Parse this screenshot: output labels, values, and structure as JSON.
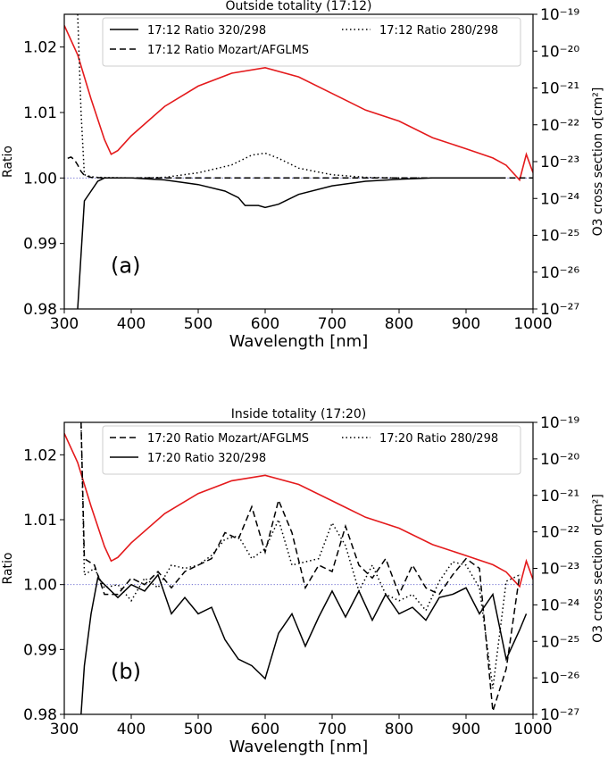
{
  "chart_data": [
    {
      "type": "line",
      "title": "Outside totality (17:12)",
      "xlabel": "Wavelength [nm]",
      "ylabel": "Ratio",
      "y2label": "O3 cross  section σ[cm²]",
      "panel_label": "(a)",
      "xlim": [
        300,
        1000
      ],
      "ylim": [
        0.98,
        1.025
      ],
      "y2_log_range": [
        -27,
        -19
      ],
      "x_ticks": [
        "300",
        "400",
        "500",
        "600",
        "700",
        "800",
        "900",
        "1000"
      ],
      "y_ticks": [
        "0.98",
        "0.99",
        "1.00",
        "1.01",
        "1.02"
      ],
      "y2_ticks": [
        "10⁻²⁷",
        "10⁻²⁶",
        "10⁻²⁵",
        "10⁻²⁴",
        "10⁻²³",
        "10⁻²²",
        "10⁻²¹",
        "10⁻²⁰",
        "10⁻¹⁹"
      ],
      "reference_line": 1.0,
      "legend": [
        "17:12 Ratio 320/298",
        "17:12 Ratio 280/298",
        "17:12 Ratio Mozart/AFGLMS"
      ],
      "series": [
        {
          "name": "17:12 Ratio 320/298",
          "style": "solid",
          "x": [
            320,
            330,
            340,
            350,
            360,
            380,
            400,
            450,
            500,
            540,
            560,
            570,
            590,
            600,
            620,
            650,
            700,
            750,
            800,
            850,
            900,
            950
          ],
          "y": [
            0.98,
            0.9965,
            0.998,
            0.9995,
            1.0,
            1.0,
            1.0,
            0.9997,
            0.999,
            0.998,
            0.997,
            0.9958,
            0.9958,
            0.9955,
            0.996,
            0.9975,
            0.9988,
            0.9995,
            0.9998,
            1.0,
            1.0,
            1.0
          ]
        },
        {
          "name": "17:12 Ratio 280/298",
          "style": "dotted",
          "x": [
            320,
            325,
            330,
            340,
            350,
            400,
            450,
            500,
            550,
            580,
            600,
            620,
            650,
            700,
            750,
            800,
            850,
            900
          ],
          "y": [
            1.025,
            1.01,
            1.0005,
            1.0002,
            1.0001,
            1.0,
            1.0001,
            1.0008,
            1.002,
            1.0035,
            1.0038,
            1.003,
            1.0015,
            1.0005,
            1.0001,
            1.0,
            1.0,
            1.0
          ]
        },
        {
          "name": "17:12 Ratio Mozart/AFGLMS",
          "style": "dashed",
          "x": [
            305,
            310,
            315,
            320,
            325,
            330,
            340,
            360,
            400,
            500,
            600,
            700,
            800,
            900,
            1000
          ],
          "y": [
            1.003,
            1.0032,
            1.0028,
            1.002,
            1.001,
            1.0004,
            1.0001,
            1.0,
            1.0,
            1.0,
            1.0,
            1.0,
            1.0,
            1.0,
            1.0
          ]
        }
      ],
      "cross_section": {
        "color": "#e41a1c",
        "x": [
          300,
          320,
          340,
          360,
          370,
          380,
          400,
          450,
          500,
          550,
          600,
          650,
          700,
          750,
          800,
          850,
          900,
          940,
          960,
          970,
          980,
          990,
          1000
        ],
        "log10_y": [
          -19.3,
          -20.1,
          -21.3,
          -22.4,
          -22.8,
          -22.7,
          -22.3,
          -21.5,
          -20.95,
          -20.6,
          -20.45,
          -20.7,
          -21.15,
          -21.6,
          -21.9,
          -22.35,
          -22.65,
          -22.9,
          -23.1,
          -23.3,
          -23.5,
          -22.8,
          -23.3
        ]
      }
    },
    {
      "type": "line",
      "title": "Inside totality (17:20)",
      "xlabel": "Wavelength [nm]",
      "ylabel": "Ratio",
      "y2label": "O3 cross  section σ[cm²]",
      "panel_label": "(b)",
      "xlim": [
        300,
        1000
      ],
      "ylim": [
        0.98,
        1.025
      ],
      "y2_log_range": [
        -27,
        -19
      ],
      "x_ticks": [
        "300",
        "400",
        "500",
        "600",
        "700",
        "800",
        "900",
        "1000"
      ],
      "y_ticks": [
        "0.98",
        "0.99",
        "1.00",
        "1.01",
        "1.02"
      ],
      "y2_ticks": [
        "10⁻²⁷",
        "10⁻²⁶",
        "10⁻²⁵",
        "10⁻²⁴",
        "10⁻²³",
        "10⁻²²",
        "10⁻²¹",
        "10⁻²⁰",
        "10⁻¹⁹"
      ],
      "reference_line": 1.0,
      "legend": [
        "17:20 Ratio Mozart/AFGLMS",
        "17:20 Ratio 280/298",
        "17:20 Ratio 320/298"
      ],
      "series": [
        {
          "name": "17:20 Ratio Mozart/AFGLMS",
          "style": "dashed",
          "x": [
            325,
            330,
            345,
            360,
            380,
            400,
            420,
            440,
            460,
            480,
            500,
            520,
            540,
            560,
            580,
            600,
            620,
            640,
            660,
            680,
            700,
            720,
            740,
            760,
            780,
            800,
            820,
            840,
            860,
            880,
            900,
            920,
            940,
            960,
            980
          ],
          "y": [
            1.025,
            1.004,
            1.003,
            0.9985,
            0.9985,
            1.001,
            1.0,
            1.002,
            0.9995,
            1.002,
            1.003,
            1.004,
            1.008,
            1.007,
            1.012,
            1.005,
            1.013,
            1.008,
            0.9995,
            1.003,
            1.002,
            1.009,
            1.003,
            1.001,
            1.004,
            0.9985,
            1.003,
            0.9995,
            0.9985,
            1.0015,
            1.004,
            1.0025,
            0.9805,
            0.987,
            1.0015
          ]
        },
        {
          "name": "17:20 Ratio 280/298",
          "style": "dotted",
          "x": [
            325,
            330,
            345,
            360,
            380,
            400,
            420,
            440,
            460,
            480,
            500,
            520,
            540,
            560,
            580,
            600,
            620,
            640,
            660,
            680,
            700,
            720,
            740,
            760,
            780,
            800,
            820,
            840,
            860,
            880,
            900,
            920,
            940,
            960,
            980
          ],
          "y": [
            1.025,
            1.0015,
            1.0025,
            0.9995,
            1.0,
            0.9975,
            1.001,
            0.9995,
            1.003,
            1.0025,
            1.003,
            1.0045,
            1.007,
            1.0075,
            1.004,
            1.0055,
            1.01,
            1.003,
            1.0035,
            1.004,
            1.0095,
            1.006,
            0.999,
            1.003,
            0.9985,
            0.9975,
            0.9985,
            0.996,
            1.0005,
            1.0035,
            1.003,
            0.9995,
            0.984,
            1.0005,
            1.0015
          ]
        },
        {
          "name": "17:20 Ratio 320/298",
          "style": "solid",
          "x": [
            325,
            330,
            340,
            350,
            360,
            380,
            400,
            420,
            440,
            460,
            480,
            500,
            520,
            540,
            560,
            580,
            600,
            620,
            640,
            660,
            680,
            700,
            720,
            740,
            760,
            780,
            800,
            820,
            840,
            860,
            880,
            900,
            920,
            940,
            960,
            980,
            990
          ],
          "y": [
            0.98,
            0.9875,
            0.9955,
            1.001,
            1.0,
            0.998,
            1.0,
            0.999,
            1.0015,
            0.9955,
            0.998,
            0.9955,
            0.9965,
            0.9915,
            0.9885,
            0.9875,
            0.9855,
            0.9925,
            0.9955,
            0.9905,
            0.995,
            0.999,
            0.995,
            0.999,
            0.9945,
            0.9985,
            0.9955,
            0.9965,
            0.9945,
            0.998,
            0.9985,
            0.9995,
            0.9955,
            0.9985,
            0.9885,
            0.993,
            0.9955
          ]
        }
      ],
      "cross_section": {
        "color": "#e41a1c",
        "x": [
          300,
          320,
          340,
          360,
          370,
          380,
          400,
          450,
          500,
          550,
          600,
          650,
          700,
          750,
          800,
          850,
          900,
          940,
          960,
          970,
          980,
          990,
          1000
        ],
        "log10_y": [
          -19.3,
          -20.1,
          -21.3,
          -22.4,
          -22.8,
          -22.7,
          -22.3,
          -21.5,
          -20.95,
          -20.6,
          -20.45,
          -20.7,
          -21.15,
          -21.6,
          -21.9,
          -22.35,
          -22.65,
          -22.9,
          -23.1,
          -23.3,
          -23.5,
          -22.8,
          -23.3
        ]
      }
    }
  ]
}
